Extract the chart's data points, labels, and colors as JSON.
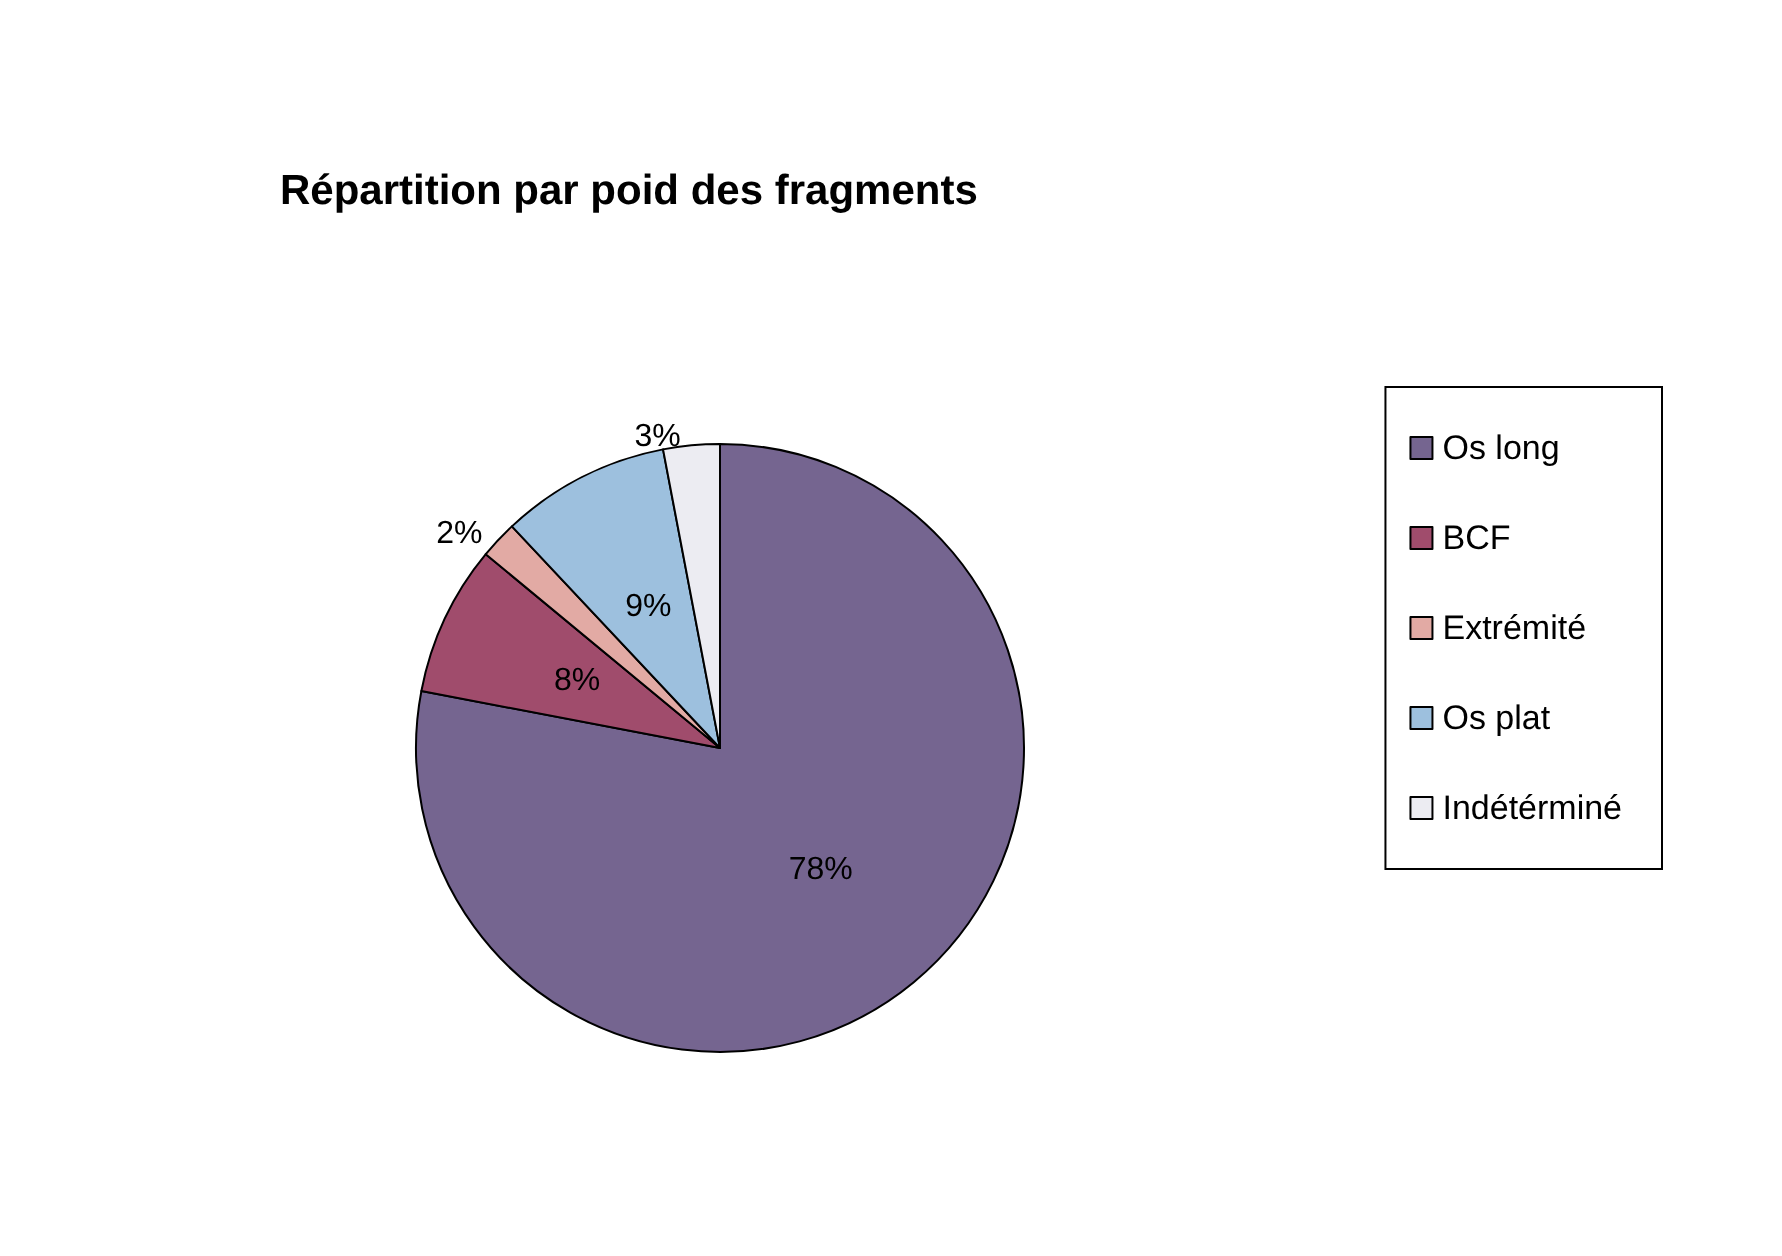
{
  "chart_data": {
    "type": "pie",
    "title": "Répartition par poid des fragments",
    "categories": [
      "Os long",
      "BCF",
      "Extrémité",
      "Os plat",
      "Indétérminé"
    ],
    "values": [
      78,
      8,
      2,
      9,
      3
    ],
    "value_labels": [
      "78%",
      "8%",
      "2%",
      "9%",
      "3%"
    ],
    "colors": [
      "#756590",
      "#a04c6c",
      "#e2aaa4",
      "#9dc0de",
      "#ececf2"
    ],
    "legend": "right"
  }
}
